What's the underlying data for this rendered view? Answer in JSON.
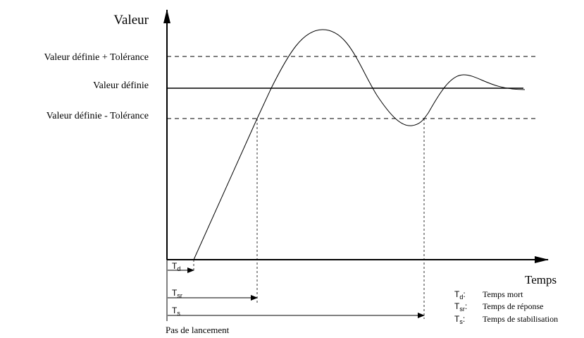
{
  "axes": {
    "y_label": "Valeur",
    "x_label": "Temps"
  },
  "levels": [
    {
      "label": "Valeur définie + Tolérance"
    },
    {
      "label": "Valeur définie"
    },
    {
      "label": "Valeur définie - Tolérance"
    }
  ],
  "intervals": [
    {
      "symbol": "T",
      "subscript": "d"
    },
    {
      "symbol": "T",
      "subscript": "sr"
    },
    {
      "symbol": "T",
      "subscript": "s"
    }
  ],
  "legend": [
    {
      "symbol": "T",
      "subscript": "d",
      "separator": ":",
      "description": "Temps mort"
    },
    {
      "symbol": "T",
      "subscript": "sr",
      "separator": ":",
      "description": "Temps de réponse"
    },
    {
      "symbol": "T",
      "subscript": "s",
      "separator": ":",
      "description": "Temps de stabilisation"
    }
  ],
  "footer": "Pas de lancement"
}
